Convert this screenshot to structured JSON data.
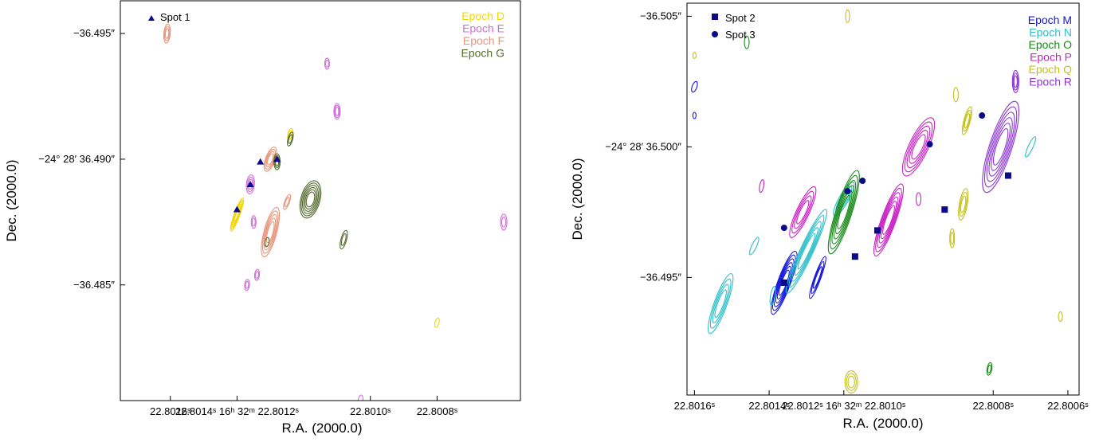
{
  "chart_data": [
    {
      "type": "scatter",
      "xlabel": "R.A. (2000.0)",
      "ylabel": "Dec. (2000.0)",
      "xlim": [
        22.80175,
        22.80055
      ],
      "ylim": [
        -36.4963,
        -36.4804
      ],
      "xticks": [
        {
          "value": 22.8016,
          "label": "22.8016ˢ"
        },
        {
          "value": 22.8014,
          "label": "22.8014ˢ 16ʰ 32ᵐ 22.8012ˢ"
        },
        {
          "value": 22.801,
          "label": "22.8010ˢ"
        },
        {
          "value": 22.8008,
          "label": "22.8008ˢ"
        }
      ],
      "yticks": [
        {
          "value": -36.485,
          "label": "−36.485″"
        },
        {
          "value": -36.49,
          "label": "−24° 28′ 36.490″"
        },
        {
          "value": -36.495,
          "label": "−36.495″"
        }
      ],
      "epochs": [
        {
          "label": "Epoch D",
          "color": "#f2d60a"
        },
        {
          "label": "Epoch E",
          "color": "#cf6fd8"
        },
        {
          "label": "Epoch F",
          "color": "#e8957a"
        },
        {
          "label": "Epoch G",
          "color": "#556b2f"
        }
      ],
      "series": [
        {
          "name": "Spot 1",
          "marker": "triangle",
          "color": "#0b0b8a",
          "points": [
            [
              22.8014,
              -36.488
            ],
            [
              22.80136,
              -36.489
            ],
            [
              22.80133,
              -36.4899
            ],
            [
              22.80128,
              -36.49
            ]
          ]
        }
      ],
      "contours": [
        {
          "x": 22.8014,
          "y": -36.4878,
          "rx": 3.5,
          "ry": 22,
          "rot": 20,
          "n": 6,
          "color": "#f2d60a"
        },
        {
          "x": 22.80124,
          "y": -36.491,
          "rx": 3,
          "ry": 7,
          "rot": 15,
          "n": 2,
          "color": "#f2d60a"
        },
        {
          "x": 22.8008,
          "y": -36.4835,
          "rx": 2.5,
          "ry": 6,
          "rot": 15,
          "n": 1,
          "color": "#f2d60a"
        },
        {
          "x": 22.80103,
          "y": -36.4804,
          "rx": 3,
          "ry": 7,
          "rot": 10,
          "n": 1,
          "color": "#cf6fd8"
        },
        {
          "x": 22.80137,
          "y": -36.485,
          "rx": 3,
          "ry": 7,
          "rot": 5,
          "n": 2,
          "color": "#cf6fd8"
        },
        {
          "x": 22.80134,
          "y": -36.4854,
          "rx": 3,
          "ry": 7,
          "rot": 5,
          "n": 2,
          "color": "#cf6fd8"
        },
        {
          "x": 22.80135,
          "y": -36.4875,
          "rx": 3,
          "ry": 8,
          "rot": 0,
          "n": 2,
          "color": "#cf6fd8"
        },
        {
          "x": 22.80136,
          "y": -36.489,
          "rx": 5,
          "ry": 12,
          "rot": 5,
          "n": 3,
          "color": "#cf6fd8"
        },
        {
          "x": 22.8011,
          "y": -36.4919,
          "rx": 4,
          "ry": 10,
          "rot": 0,
          "n": 3,
          "color": "#cf6fd8"
        },
        {
          "x": 22.80113,
          "y": -36.4938,
          "rx": 3,
          "ry": 7,
          "rot": 0,
          "n": 2,
          "color": "#cf6fd8"
        },
        {
          "x": 22.8006,
          "y": -36.4875,
          "rx": 4,
          "ry": 10,
          "rot": 0,
          "n": 2,
          "color": "#cf6fd8"
        },
        {
          "x": 22.8013,
          "y": -36.4871,
          "rx": 8,
          "ry": 32,
          "rot": 15,
          "n": 5,
          "color": "#e8957a"
        },
        {
          "x": 22.8013,
          "y": -36.49,
          "rx": 6,
          "ry": 16,
          "rot": 20,
          "n": 4,
          "color": "#e8957a"
        },
        {
          "x": 22.80125,
          "y": -36.4883,
          "rx": 3,
          "ry": 10,
          "rot": 20,
          "n": 2,
          "color": "#e8957a"
        },
        {
          "x": 22.80161,
          "y": -36.495,
          "rx": 4,
          "ry": 12,
          "rot": 5,
          "n": 3,
          "color": "#e8957a"
        },
        {
          "x": 22.80118,
          "y": -36.4884,
          "rx": 12,
          "ry": 24,
          "rot": 15,
          "n": 6,
          "color": "#556b2f"
        },
        {
          "x": 22.80108,
          "y": -36.4868,
          "rx": 3.5,
          "ry": 12,
          "rot": 15,
          "n": 2,
          "color": "#556b2f"
        },
        {
          "x": 22.80128,
          "y": -36.4899,
          "rx": 4,
          "ry": 10,
          "rot": 0,
          "n": 3,
          "color": "#556b2f"
        },
        {
          "x": 22.80124,
          "y": -36.4908,
          "rx": 3,
          "ry": 9,
          "rot": 15,
          "n": 2,
          "color": "#556b2f"
        },
        {
          "x": 22.80131,
          "y": -36.4867,
          "rx": 2.5,
          "ry": 6,
          "rot": 10,
          "n": 1,
          "color": "#556b2f"
        }
      ]
    },
    {
      "type": "scatter",
      "xlabel": "R.A. (2000.0)",
      "ylabel": "Dec. (2000.0)",
      "xlim": [
        22.80162,
        22.80057
      ],
      "ylim": [
        -36.5055,
        -36.4905
      ],
      "xticks": [
        {
          "value": 22.8016,
          "label": "22.8016ˢ"
        },
        {
          "value": 22.8014,
          "label": "22.8014ˢ"
        },
        {
          "value": 22.8012,
          "label": "22.8012ˢ 16ʰ 32ᵐ 22.8010ˢ"
        },
        {
          "value": 22.8008,
          "label": "22.8008ˢ"
        },
        {
          "value": 22.8006,
          "label": "22.8006ˢ"
        }
      ],
      "yticks": [
        {
          "value": -36.495,
          "label": "−36.495″"
        },
        {
          "value": -36.5,
          "label": "−24° 28′ 36.500″"
        },
        {
          "value": -36.505,
          "label": "−36.505″"
        }
      ],
      "epochs": [
        {
          "label": "Epoch M",
          "color": "#1515e0"
        },
        {
          "label": "Epoch N",
          "color": "#2bbfc7"
        },
        {
          "label": "Epoch O",
          "color": "#1a8a1a"
        },
        {
          "label": "Epoch P",
          "color": "#c81fc4"
        },
        {
          "label": "Epoch Q",
          "color": "#c4c21a"
        },
        {
          "label": "Epoch R",
          "color": "#8a35d8"
        }
      ],
      "series": [
        {
          "name": "Spot 2",
          "marker": "square",
          "color": "#0b0b8a",
          "points": [
            [
              22.80136,
              -36.4948
            ],
            [
              22.80117,
              -36.4958
            ],
            [
              22.80111,
              -36.4968
            ],
            [
              22.80093,
              -36.4976
            ],
            [
              22.80076,
              -36.4989
            ]
          ]
        },
        {
          "name": "Spot 3",
          "marker": "circle",
          "color": "#0b0b8a",
          "points": [
            [
              22.80136,
              -36.4969
            ],
            [
              22.80119,
              -36.4983
            ],
            [
              22.80115,
              -36.4987
            ],
            [
              22.80097,
              -36.5001
            ],
            [
              22.80083,
              -36.5012
            ]
          ]
        }
      ],
      "contours": [
        {
          "x": 22.80136,
          "y": -36.4948,
          "rx": 8,
          "ry": 42,
          "rot": 20,
          "n": 6,
          "color": "#1515e0"
        },
        {
          "x": 22.80127,
          "y": -36.495,
          "rx": 4,
          "ry": 28,
          "rot": 20,
          "n": 3,
          "color": "#1515e0"
        },
        {
          "x": 22.8016,
          "y": -36.5012,
          "rx": 2,
          "ry": 4,
          "rot": 0,
          "n": 1,
          "color": "#1515e0"
        },
        {
          "x": 22.8016,
          "y": -36.5023,
          "rx": 3,
          "ry": 7,
          "rot": 20,
          "n": 1,
          "color": "#1515e0"
        },
        {
          "x": 22.80153,
          "y": -36.494,
          "rx": 8,
          "ry": 40,
          "rot": 20,
          "n": 4,
          "color": "#2bbfc7"
        },
        {
          "x": 22.8013,
          "y": -36.496,
          "rx": 8,
          "ry": 58,
          "rot": 25,
          "n": 5,
          "color": "#2bbfc7"
        },
        {
          "x": 22.80144,
          "y": -36.4962,
          "rx": 3,
          "ry": 12,
          "rot": 25,
          "n": 1,
          "color": "#2bbfc7"
        },
        {
          "x": 22.80139,
          "y": -36.4943,
          "rx": 3,
          "ry": 12,
          "rot": 10,
          "n": 1,
          "color": "#2bbfc7"
        },
        {
          "x": 22.8012,
          "y": -36.498,
          "rx": 6,
          "ry": 24,
          "rot": 30,
          "n": 3,
          "color": "#2bbfc7"
        },
        {
          "x": 22.8007,
          "y": -36.5,
          "rx": 3,
          "ry": 14,
          "rot": 25,
          "n": 1,
          "color": "#2bbfc7"
        },
        {
          "x": 22.8012,
          "y": -36.4975,
          "rx": 10,
          "ry": 55,
          "rot": 18,
          "n": 6,
          "color": "#1a8a1a"
        },
        {
          "x": 22.80146,
          "y": -36.504,
          "rx": 3,
          "ry": 8,
          "rot": 0,
          "n": 1,
          "color": "#1a8a1a"
        },
        {
          "x": 22.80081,
          "y": -36.4915,
          "rx": 3,
          "ry": 8,
          "rot": 10,
          "n": 2,
          "color": "#1a8a1a"
        },
        {
          "x": 22.80131,
          "y": -36.4975,
          "rx": 8,
          "ry": 35,
          "rot": 25,
          "n": 4,
          "color": "#c81fc4"
        },
        {
          "x": 22.80142,
          "y": -36.4985,
          "rx": 2.5,
          "ry": 8,
          "rot": 10,
          "n": 1,
          "color": "#c81fc4"
        },
        {
          "x": 22.80108,
          "y": -36.4972,
          "rx": 9,
          "ry": 48,
          "rot": 20,
          "n": 6,
          "color": "#c81fc4"
        },
        {
          "x": 22.801,
          "y": -36.5,
          "rx": 12,
          "ry": 40,
          "rot": 25,
          "n": 5,
          "color": "#c81fc4"
        },
        {
          "x": 22.801,
          "y": -36.498,
          "rx": 3,
          "ry": 8,
          "rot": 0,
          "n": 1,
          "color": "#c81fc4"
        },
        {
          "x": 22.80091,
          "y": -36.4965,
          "rx": 3,
          "ry": 12,
          "rot": 0,
          "n": 2,
          "color": "#c4c21a"
        },
        {
          "x": 22.80088,
          "y": -36.4978,
          "rx": 5,
          "ry": 20,
          "rot": 10,
          "n": 3,
          "color": "#c4c21a"
        },
        {
          "x": 22.80087,
          "y": -36.501,
          "rx": 4,
          "ry": 18,
          "rot": 15,
          "n": 3,
          "color": "#c4c21a"
        },
        {
          "x": 22.8009,
          "y": -36.502,
          "rx": 3,
          "ry": 9,
          "rot": 0,
          "n": 1,
          "color": "#c4c21a"
        },
        {
          "x": 22.80118,
          "y": -36.491,
          "rx": 8,
          "ry": 14,
          "rot": 0,
          "n": 3,
          "color": "#c4c21a"
        },
        {
          "x": 22.80062,
          "y": -36.4935,
          "rx": 2.5,
          "ry": 6,
          "rot": 0,
          "n": 1,
          "color": "#c4c21a"
        },
        {
          "x": 22.80119,
          "y": -36.505,
          "rx": 2.5,
          "ry": 8,
          "rot": 0,
          "n": 1,
          "color": "#c4c21a"
        },
        {
          "x": 22.8016,
          "y": -36.5035,
          "rx": 2,
          "ry": 4,
          "rot": 0,
          "n": 1,
          "color": "#c4c21a"
        },
        {
          "x": 22.80078,
          "y": -36.5,
          "rx": 14,
          "ry": 60,
          "rot": 18,
          "n": 6,
          "color": "#8a35d8"
        },
        {
          "x": 22.80074,
          "y": -36.5025,
          "rx": 4,
          "ry": 14,
          "rot": 0,
          "n": 3,
          "color": "#8a35d8"
        }
      ]
    }
  ],
  "legends": {
    "panel_a": {
      "spot_1": "Spot 1"
    },
    "panel_b": {
      "spot_2": "Spot 2",
      "spot_3": "Spot 3"
    }
  }
}
